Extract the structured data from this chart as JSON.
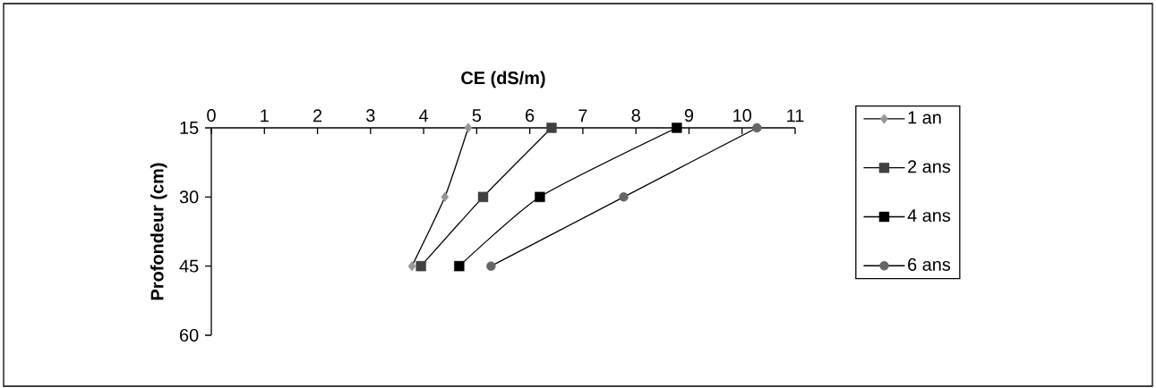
{
  "chart_data": {
    "type": "line",
    "xlabel": "CE (dS/m)",
    "ylabel": "Profondeur (cm)",
    "xlim": [
      0,
      11
    ],
    "xticks": [
      0,
      1,
      2,
      3,
      4,
      5,
      6,
      7,
      8,
      9,
      10,
      11
    ],
    "ylim": [
      60,
      15
    ],
    "yticks": [
      15,
      30,
      45,
      60
    ],
    "legend": "right",
    "line_style": "solid",
    "series": [
      {
        "name": "1 an",
        "color": "#969696",
        "marker": "diamond",
        "x": [
          4.84,
          4.4,
          3.78
        ],
        "values": [
          15,
          30,
          45
        ]
      },
      {
        "name": "2 ans",
        "color": "#404040",
        "marker": "square",
        "x": [
          6.41,
          5.12,
          3.95
        ],
        "values": [
          15,
          30,
          45
        ]
      },
      {
        "name": "4 ans",
        "color": "#000000",
        "marker": "square",
        "x": [
          8.77,
          6.19,
          4.67
        ],
        "values": [
          15,
          30,
          45
        ]
      },
      {
        "name": "6 ans",
        "color": "#666666",
        "marker": "circle",
        "x": [
          10.28,
          7.77,
          5.27
        ],
        "values": [
          15,
          30,
          45
        ]
      }
    ]
  }
}
